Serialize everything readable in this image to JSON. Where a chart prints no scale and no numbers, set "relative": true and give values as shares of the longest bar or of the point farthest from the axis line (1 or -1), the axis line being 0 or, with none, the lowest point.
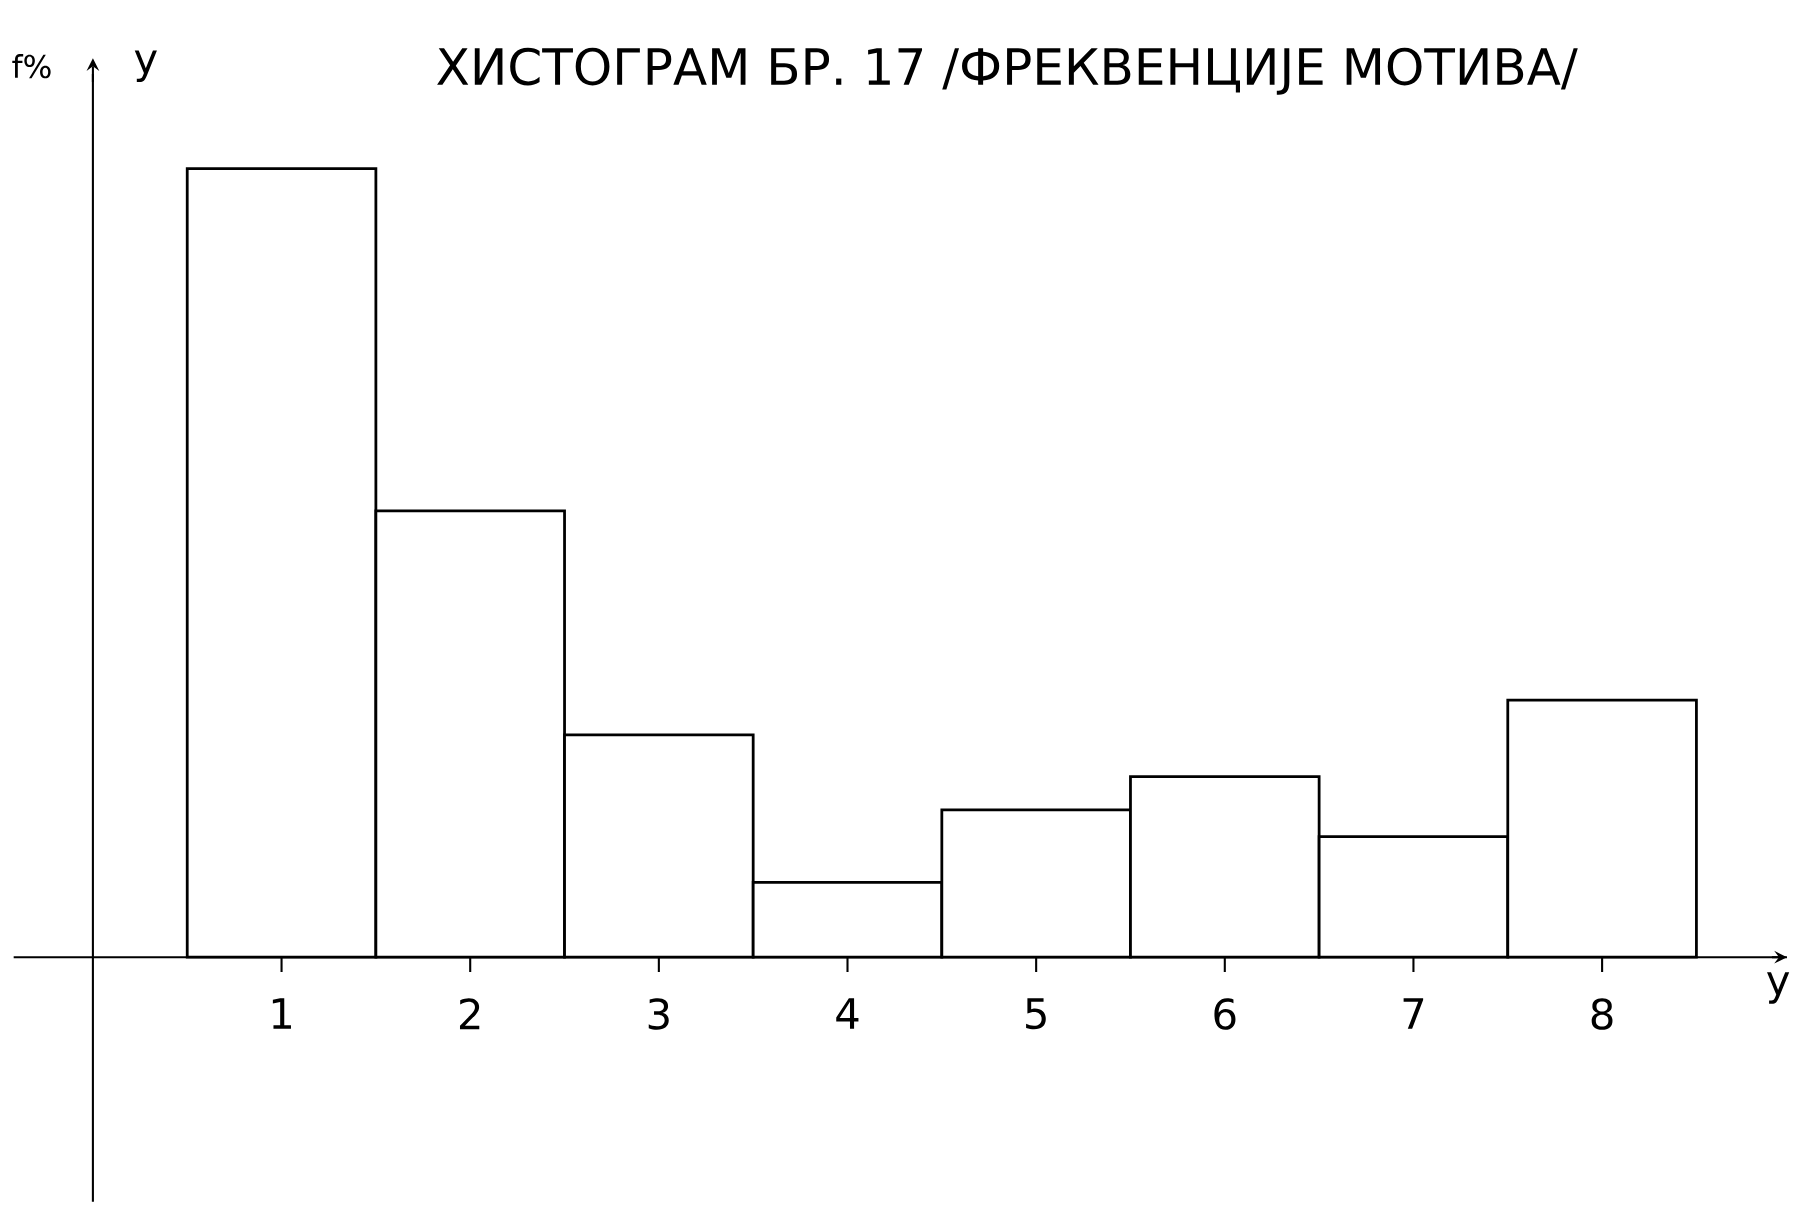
{
  "chart_data": {
    "type": "bar",
    "title": "ХИСТОГРАМ БР. 17 /ФРЕКВЕНЦИЈЕ МОТИВА/",
    "xlabel": "y",
    "ylabel": "y",
    "annotations": [
      "f%"
    ],
    "categories": [
      "1",
      "2",
      "3",
      "4",
      "5",
      "6",
      "7",
      "8"
    ],
    "values": [
      1,
      0.566,
      0.282,
      0.095,
      0.187,
      0.229,
      0.153,
      0.326
    ],
    "color": "#ffffff",
    "relative": true
  }
}
